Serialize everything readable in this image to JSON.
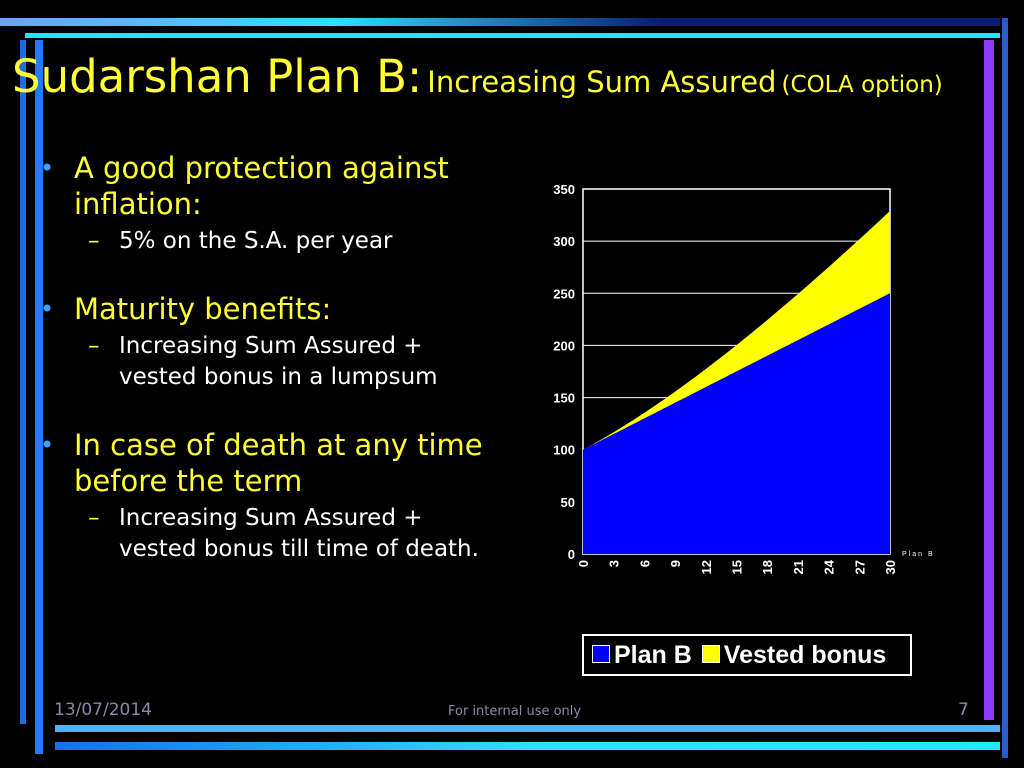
{
  "slide": {
    "title_main": "Sudarshan Plan B:",
    "title_sub": "Increasing Sum Assured",
    "title_sub_small": "(COLA option)",
    "bullets": [
      {
        "text": "A good protection against inflation:",
        "sub": "5% on the S.A. per year"
      },
      {
        "text": "Maturity benefits:",
        "sub": "Increasing  Sum  Assured + vested bonus in a lumpsum"
      },
      {
        "text": "In case of death at any time before the term",
        "sub": "Increasing  Sum Assured + vested bonus till time of death."
      }
    ],
    "footer_date": "13/07/2014",
    "footer_note": "For internal use only",
    "page_number": "7"
  },
  "colors": {
    "plan_b": "#0000ff",
    "vested_bonus": "#ffff00",
    "title": "#ffff33"
  },
  "chart_data": {
    "type": "area",
    "stacked": true,
    "x": [
      0,
      1,
      2,
      3,
      4,
      5,
      6,
      7,
      8,
      9,
      10,
      11,
      12,
      13,
      14,
      15,
      16,
      17,
      18,
      19,
      20,
      21,
      22,
      23,
      24,
      25,
      26,
      27,
      28,
      29,
      30
    ],
    "xticks": [
      "0",
      "3",
      "6",
      "9",
      "12",
      "15",
      "18",
      "21",
      "24",
      "27",
      "30"
    ],
    "ylim": [
      0,
      350
    ],
    "yticks": [
      "0",
      "50",
      "100",
      "150",
      "200",
      "250",
      "300",
      "350"
    ],
    "grid": true,
    "series": [
      {
        "name": "Plan B",
        "values": [
          100,
          105,
          110,
          115,
          120,
          125,
          130,
          135,
          140,
          145,
          150,
          155,
          160,
          165,
          170,
          175,
          180,
          185,
          190,
          195,
          200,
          205,
          210,
          215,
          220,
          225,
          230,
          235,
          240,
          245,
          250
        ]
      },
      {
        "name": "Vested bonus",
        "values": [
          0,
          0.3,
          1,
          1.8,
          2.8,
          4,
          5.4,
          7,
          8.8,
          10.7,
          12.8,
          15,
          17.4,
          19.9,
          22.5,
          25.3,
          28.2,
          31.2,
          34.3,
          37.6,
          40.9,
          44.3,
          47.8,
          51.4,
          55.1,
          58.9,
          62.8,
          66.7,
          70.7,
          74.8,
          79
        ]
      }
    ],
    "right_label": "Plan B",
    "legend": [
      "Plan B",
      "Vested bonus"
    ],
    "legend_position": "bottom"
  }
}
